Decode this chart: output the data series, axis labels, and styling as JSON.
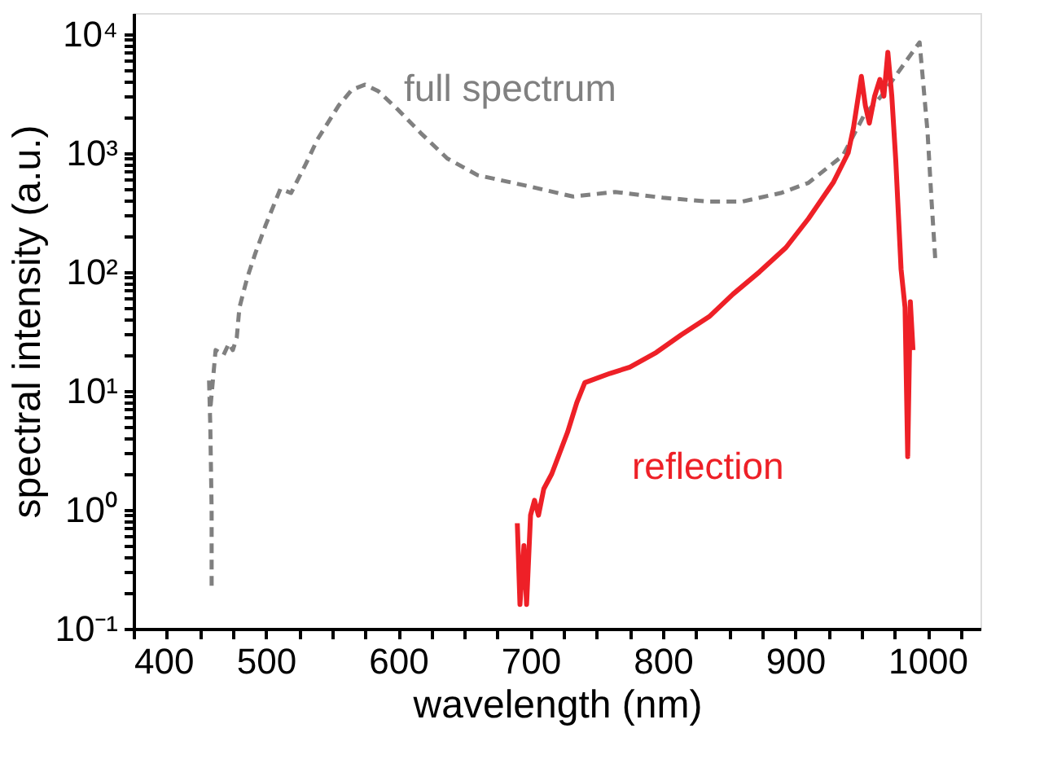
{
  "chart_data": {
    "type": "line",
    "xlabel": "wavelength (nm)",
    "ylabel": "spectral intensity (a.u.)",
    "log": "y",
    "grid": false,
    "marker": "none",
    "xlim": [
      400,
      1040
    ],
    "xticks": [
      400,
      {
        "value": 425,
        "label": null
      },
      {
        "value": 450,
        "label": null
      },
      {
        "value": 475,
        "label": null
      },
      500,
      {
        "value": 525,
        "label": null
      },
      {
        "value": 550,
        "label": null
      },
      {
        "value": 575,
        "label": null
      },
      600,
      {
        "value": 625,
        "label": null
      },
      {
        "value": 650,
        "label": null
      },
      {
        "value": 675,
        "label": null
      },
      700,
      {
        "value": 725,
        "label": null
      },
      {
        "value": 750,
        "label": null
      },
      {
        "value": 775,
        "label": null
      },
      800,
      {
        "value": 825,
        "label": null
      },
      {
        "value": 850,
        "label": null
      },
      {
        "value": 875,
        "label": null
      },
      900,
      {
        "value": 925,
        "label": null
      },
      {
        "value": 950,
        "label": null
      },
      {
        "value": 975,
        "label": null
      },
      1000,
      {
        "value": 1025,
        "label": null
      }
    ],
    "ylim": [
      0.1,
      15000
    ],
    "yticks": [
      {
        "value": 0.1,
        "label": "10⁻¹"
      },
      {
        "value": 0.2,
        "label": null
      },
      {
        "value": 0.3,
        "label": null
      },
      {
        "value": 0.4,
        "label": null
      },
      {
        "value": 0.5,
        "label": null
      },
      {
        "value": 0.6,
        "label": null
      },
      {
        "value": 0.7,
        "label": null
      },
      {
        "value": 0.8,
        "label": null
      },
      {
        "value": 0.9,
        "label": null
      },
      {
        "value": 1,
        "label": "10⁰"
      },
      {
        "value": 2,
        "label": null
      },
      {
        "value": 3,
        "label": null
      },
      {
        "value": 4,
        "label": null
      },
      {
        "value": 5,
        "label": null
      },
      {
        "value": 6,
        "label": null
      },
      {
        "value": 7,
        "label": null
      },
      {
        "value": 8,
        "label": null
      },
      {
        "value": 9,
        "label": null
      },
      {
        "value": 10,
        "label": "10¹"
      },
      {
        "value": 20,
        "label": null
      },
      {
        "value": 30,
        "label": null
      },
      {
        "value": 40,
        "label": null
      },
      {
        "value": 50,
        "label": null
      },
      {
        "value": 60,
        "label": null
      },
      {
        "value": 70,
        "label": null
      },
      {
        "value": 80,
        "label": null
      },
      {
        "value": 90,
        "label": null
      },
      {
        "value": 100,
        "label": "10²"
      },
      {
        "value": 200,
        "label": null
      },
      {
        "value": 300,
        "label": null
      },
      {
        "value": 400,
        "label": null
      },
      {
        "value": 500,
        "label": null
      },
      {
        "value": 600,
        "label": null
      },
      {
        "value": 700,
        "label": null
      },
      {
        "value": 800,
        "label": null
      },
      {
        "value": 900,
        "label": null
      },
      {
        "value": 1000,
        "label": "10³"
      },
      {
        "value": 2000,
        "label": null
      },
      {
        "value": 3000,
        "label": null
      },
      {
        "value": 4000,
        "label": null
      },
      {
        "value": 5000,
        "label": null
      },
      {
        "value": 6000,
        "label": null
      },
      {
        "value": 7000,
        "label": null
      },
      {
        "value": 8000,
        "label": null
      },
      {
        "value": 9000,
        "label": null
      },
      {
        "value": 10000,
        "label": "10⁴"
      }
    ],
    "series": [
      {
        "name": "full spectrum",
        "color": "#808080",
        "line_style": "dashed",
        "x": [
          459,
          459,
          458,
          457,
          458,
          462,
          468,
          472,
          475,
          478,
          480,
          486,
          492,
          500,
          511,
          519,
          530,
          539,
          555,
          565,
          575,
          585,
          600,
          617,
          637,
          660,
          700,
          732,
          764,
          800,
          834,
          860,
          889,
          910,
          936,
          952,
          965,
          980,
          994,
          1000,
          1003,
          1006
        ],
        "values": [
          0.23,
          1,
          5,
          13,
          7,
          22,
          20,
          25,
          22,
          28,
          50,
          90,
          143,
          250,
          500,
          460,
          800,
          1300,
          2500,
          3400,
          3750,
          3300,
          2300,
          1470,
          900,
          650,
          520,
          430,
          470,
          420,
          390,
          390,
          460,
          560,
          950,
          2070,
          3000,
          5160,
          8500,
          1500,
          400,
          120
        ]
      },
      {
        "name": "reflection",
        "color": "#ee2027",
        "line_style": "solid",
        "x": [
          690,
          692,
          695,
          697,
          700,
          703,
          706,
          710,
          716,
          722,
          728,
          735,
          741,
          760,
          775,
          795,
          814,
          835,
          853,
          873,
          893,
          910,
          929,
          940,
          944,
          950,
          953,
          956,
          960,
          964,
          967,
          970,
          973,
          976,
          980,
          983,
          985,
          987,
          989
        ],
        "values": [
          0.77,
          0.16,
          0.5,
          0.16,
          0.9,
          1.2,
          0.9,
          1.5,
          2,
          3,
          4.5,
          8,
          11.7,
          14,
          15.8,
          21,
          29.6,
          42,
          65,
          100,
          160,
          280,
          570,
          1000,
          1620,
          4400,
          2500,
          1780,
          3000,
          4150,
          3000,
          7000,
          3000,
          860,
          105,
          50,
          2.8,
          56,
          22
        ]
      }
    ]
  }
}
